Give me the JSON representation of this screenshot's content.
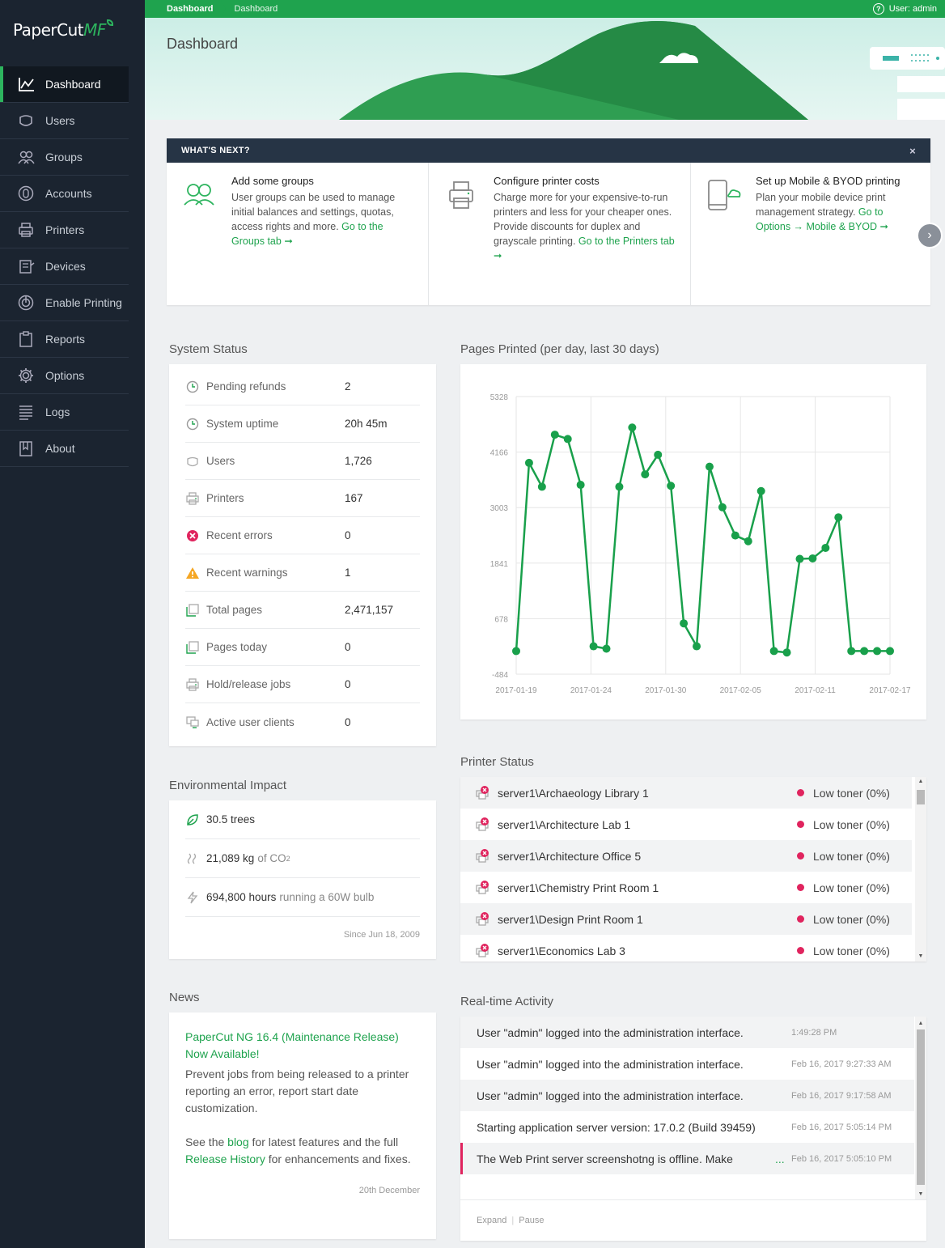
{
  "brand": {
    "name": "PaperCut",
    "suffix": "MF"
  },
  "nav": [
    {
      "label": "Dashboard",
      "icon": "chart-line-icon",
      "active": true
    },
    {
      "label": "Users",
      "icon": "user-icon"
    },
    {
      "label": "Groups",
      "icon": "group-icon"
    },
    {
      "label": "Accounts",
      "icon": "accounts-icon"
    },
    {
      "label": "Printers",
      "icon": "printer-icon"
    },
    {
      "label": "Devices",
      "icon": "device-icon"
    },
    {
      "label": "Enable Printing",
      "icon": "enable-printing-icon"
    },
    {
      "label": "Reports",
      "icon": "clipboard-icon"
    },
    {
      "label": "Options",
      "icon": "gear-icon"
    },
    {
      "label": "Logs",
      "icon": "logs-icon"
    },
    {
      "label": "About",
      "icon": "bookmark-icon"
    }
  ],
  "topbar": {
    "crumb1": "Dashboard",
    "crumb2": "Dashboard",
    "user": "User: admin"
  },
  "page_title": "Dashboard",
  "whats_next": {
    "title": "WHAT'S NEXT?",
    "close": "×",
    "items": [
      {
        "title": "Add some groups",
        "body": "User groups can be used to manage initial balances and settings, quotas, access rights and more. ",
        "link": "Go to the Groups tab ➞"
      },
      {
        "title": "Configure printer costs",
        "body": "Charge more for your expensive-to-run printers and less for your cheaper ones. Provide discounts for duplex and grayscale printing. ",
        "link": "Go to the Printers tab ➞"
      },
      {
        "title": "Set up Mobile & BYOD printing",
        "body": "Plan your mobile device print management strategy. ",
        "link": "Go to Options → Mobile & BYOD ➞"
      }
    ]
  },
  "system_status": {
    "title": "System Status",
    "rows": [
      {
        "label": "Pending refunds",
        "value": "2",
        "icon": "clock-icon"
      },
      {
        "label": "System uptime",
        "value": "20h 45m",
        "icon": "clock-icon"
      },
      {
        "label": "Users",
        "value": "1,726",
        "icon": "user-icon"
      },
      {
        "label": "Printers",
        "value": "167",
        "icon": "printer-icon"
      },
      {
        "label": "Recent errors",
        "value": "0",
        "icon": "error-icon"
      },
      {
        "label": "Recent warnings",
        "value": "1",
        "icon": "warning-icon"
      },
      {
        "label": "Total pages",
        "value": "2,471,157",
        "icon": "pages-icon"
      },
      {
        "label": "Pages today",
        "value": "0",
        "icon": "pages-icon"
      },
      {
        "label": "Hold/release jobs",
        "value": "0",
        "icon": "printer-icon"
      },
      {
        "label": "Active user clients",
        "value": "0",
        "icon": "monitor-icon"
      }
    ]
  },
  "environment": {
    "title": "Environmental Impact",
    "trees_value": "30.5 trees",
    "co2_value": "21,089 kg",
    "co2_suffix": "of CO",
    "co2_sub": "2",
    "hours_value": "694,800 hours",
    "hours_suffix": "running a 60W bulb",
    "since": "Since Jun 18, 2009"
  },
  "news": {
    "title": "News",
    "headline": "PaperCut NG 16.4 (Maintenance Release) Now Available!",
    "body": "Prevent jobs from being released to a printer reporting an error, report start date customization.",
    "p2_pre": "See the ",
    "p2_link1": "blog",
    "p2_mid": " for latest features and the full ",
    "p2_link2": "Release History",
    "p2_post": " for enhancements and fixes.",
    "date": "20th December"
  },
  "pages_chart_title": "Pages Printed (per day, last 30 days)",
  "chart_data": {
    "type": "line",
    "title": "Pages Printed (per day, last 30 days)",
    "x_ticks": [
      "2017-01-19",
      "2017-01-24",
      "2017-01-30",
      "2017-02-05",
      "2017-02-11",
      "2017-02-17"
    ],
    "y_ticks": [
      "5328",
      "4166",
      "3003",
      "1841",
      "678",
      "-484"
    ],
    "ylim": [
      -484,
      5328
    ],
    "series": [
      {
        "color": "#19a04b",
        "values": [
          0,
          3940,
          3440,
          4530,
          4440,
          3480,
          100,
          50,
          3440,
          4680,
          3700,
          4110,
          3460,
          580,
          100,
          3860,
          3010,
          2420,
          2300,
          3350,
          0,
          -30,
          1930,
          1940,
          2160,
          2800,
          0,
          0,
          0,
          0
        ]
      }
    ],
    "grid": true,
    "legend": "none"
  },
  "printer_status": {
    "title": "Printer Status",
    "rows": [
      {
        "name": "server1\\Archaeology Library 1",
        "status": "Low toner (0%)"
      },
      {
        "name": "server1\\Architecture Lab 1",
        "status": "Low toner (0%)"
      },
      {
        "name": "server1\\Architecture Office 5",
        "status": "Low toner (0%)"
      },
      {
        "name": "server1\\Chemistry Print Room 1",
        "status": "Low toner (0%)"
      },
      {
        "name": "server1\\Design Print Room 1",
        "status": "Low toner (0%)"
      },
      {
        "name": "server1\\Economics Lab 3",
        "status": "Low toner (0%)"
      }
    ]
  },
  "activity": {
    "title": "Real-time Activity",
    "rows": [
      {
        "msg": "User \"admin\" logged into the administration interface.",
        "time": "1:49:28 PM"
      },
      {
        "msg": "User \"admin\" logged into the administration interface.",
        "time": "Feb 16, 2017 9:27:33 AM"
      },
      {
        "msg": "User \"admin\" logged into the administration interface.",
        "time": "Feb 16, 2017 9:17:58 AM"
      },
      {
        "msg": "Starting application server version: 17.0.2 (Build 39459)",
        "time": "Feb 16, 2017 5:05:14 PM"
      },
      {
        "msg": "The Web Print server screenshotng is offline. Make",
        "more": "...",
        "time": "Feb 16, 2017 5:05:10 PM",
        "alert": true
      }
    ],
    "expand": "Expand",
    "pause": "Pause",
    "sep": "|"
  }
}
